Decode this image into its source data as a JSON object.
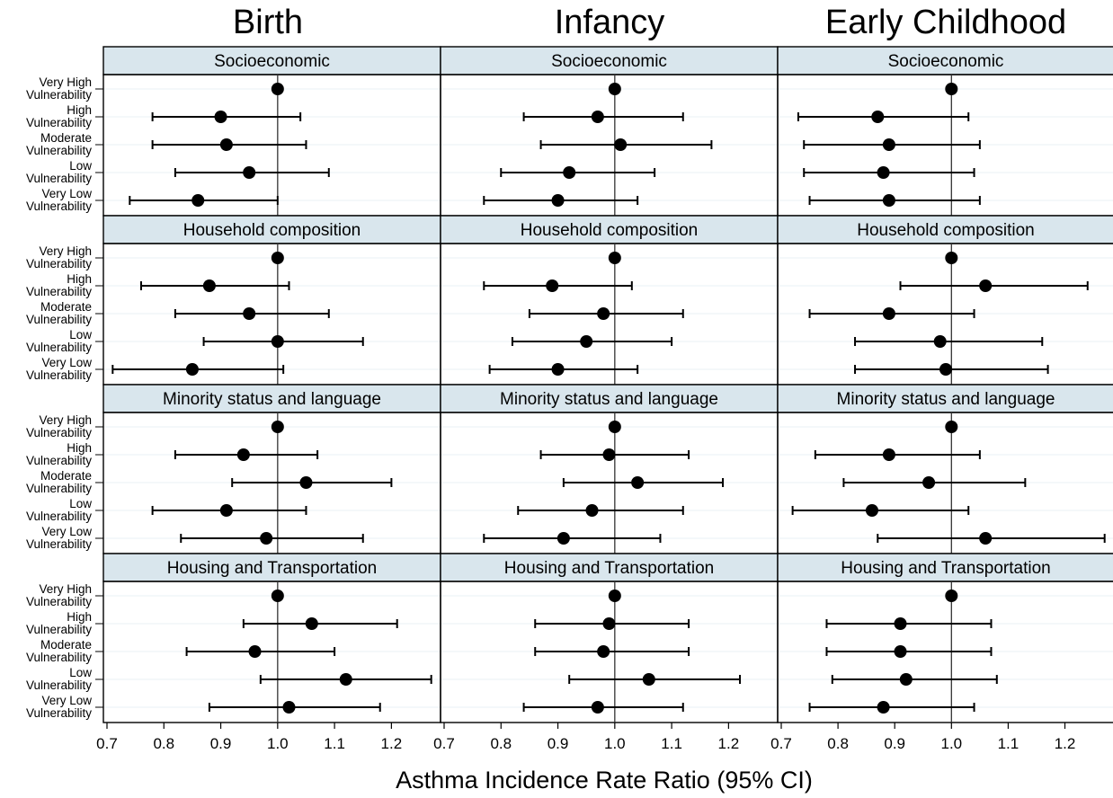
{
  "chart_data": {
    "type": "forest",
    "xlabel": "Asthma Incidence Rate Ratio (95% CI)",
    "xlim": [
      0.7,
      1.28
    ],
    "x_ticks": [
      0.7,
      0.8,
      0.9,
      1.0,
      1.1,
      1.2
    ],
    "x_tick_labels": [
      "0.7",
      "0.8",
      "0.9",
      "1.0",
      "1.1",
      "1.2"
    ],
    "reference_line": 1.0,
    "columns": [
      "Birth",
      "Infancy",
      "Early Childhood"
    ],
    "rows": [
      "Socioeconomic",
      "Household composition",
      "Minority status and language",
      "Housing and Transportation"
    ],
    "categories": [
      {
        "line1": "Very High",
        "line2": "Vulnerability"
      },
      {
        "line1": "High",
        "line2": "Vulnerability"
      },
      {
        "line1": "Moderate",
        "line2": "Vulnerability"
      },
      {
        "line1": "Low",
        "line2": "Vulnerability"
      },
      {
        "line1": "Very Low",
        "line2": "Vulnerability"
      }
    ],
    "estimates": [
      [
        [
          [
            1.0,
            1.0,
            1.0
          ],
          [
            0.9,
            0.78,
            1.04
          ],
          [
            0.91,
            0.78,
            1.05
          ],
          [
            0.95,
            0.82,
            1.09
          ],
          [
            0.86,
            0.74,
            1.0
          ]
        ],
        [
          [
            1.0,
            1.0,
            1.0
          ],
          [
            0.97,
            0.84,
            1.12
          ],
          [
            1.01,
            0.87,
            1.17
          ],
          [
            0.92,
            0.8,
            1.07
          ],
          [
            0.9,
            0.77,
            1.04
          ]
        ],
        [
          [
            1.0,
            1.0,
            1.0
          ],
          [
            0.87,
            0.73,
            1.03
          ],
          [
            0.89,
            0.74,
            1.05
          ],
          [
            0.88,
            0.74,
            1.04
          ],
          [
            0.89,
            0.75,
            1.05
          ]
        ]
      ],
      [
        [
          [
            1.0,
            1.0,
            1.0
          ],
          [
            0.88,
            0.76,
            1.02
          ],
          [
            0.95,
            0.82,
            1.09
          ],
          [
            1.0,
            0.87,
            1.15
          ],
          [
            0.85,
            0.71,
            1.01
          ]
        ],
        [
          [
            1.0,
            1.0,
            1.0
          ],
          [
            0.89,
            0.77,
            1.03
          ],
          [
            0.98,
            0.85,
            1.12
          ],
          [
            0.95,
            0.82,
            1.1
          ],
          [
            0.9,
            0.78,
            1.04
          ]
        ],
        [
          [
            1.0,
            1.0,
            1.0
          ],
          [
            1.06,
            0.91,
            1.24
          ],
          [
            0.89,
            0.75,
            1.04
          ],
          [
            0.98,
            0.83,
            1.16
          ],
          [
            0.99,
            0.83,
            1.17
          ]
        ]
      ],
      [
        [
          [
            1.0,
            1.0,
            1.0
          ],
          [
            0.94,
            0.82,
            1.07
          ],
          [
            1.05,
            0.92,
            1.2
          ],
          [
            0.91,
            0.78,
            1.05
          ],
          [
            0.98,
            0.83,
            1.15
          ]
        ],
        [
          [
            1.0,
            1.0,
            1.0
          ],
          [
            0.99,
            0.87,
            1.13
          ],
          [
            1.04,
            0.91,
            1.19
          ],
          [
            0.96,
            0.83,
            1.12
          ],
          [
            0.91,
            0.77,
            1.08
          ]
        ],
        [
          [
            1.0,
            1.0,
            1.0
          ],
          [
            0.89,
            0.76,
            1.05
          ],
          [
            0.96,
            0.81,
            1.13
          ],
          [
            0.86,
            0.72,
            1.03
          ],
          [
            1.06,
            0.87,
            1.27
          ]
        ]
      ],
      [
        [
          [
            1.0,
            1.0,
            1.0
          ],
          [
            1.06,
            0.94,
            1.21
          ],
          [
            0.96,
            0.84,
            1.1
          ],
          [
            1.12,
            0.97,
            1.27
          ],
          [
            1.02,
            0.88,
            1.18
          ]
        ],
        [
          [
            1.0,
            1.0,
            1.0
          ],
          [
            0.99,
            0.86,
            1.13
          ],
          [
            0.98,
            0.86,
            1.13
          ],
          [
            1.06,
            0.92,
            1.22
          ],
          [
            0.97,
            0.84,
            1.12
          ]
        ],
        [
          [
            1.0,
            1.0,
            1.0
          ],
          [
            0.91,
            0.78,
            1.07
          ],
          [
            0.91,
            0.78,
            1.07
          ],
          [
            0.92,
            0.79,
            1.08
          ],
          [
            0.88,
            0.75,
            1.04
          ]
        ]
      ]
    ]
  }
}
